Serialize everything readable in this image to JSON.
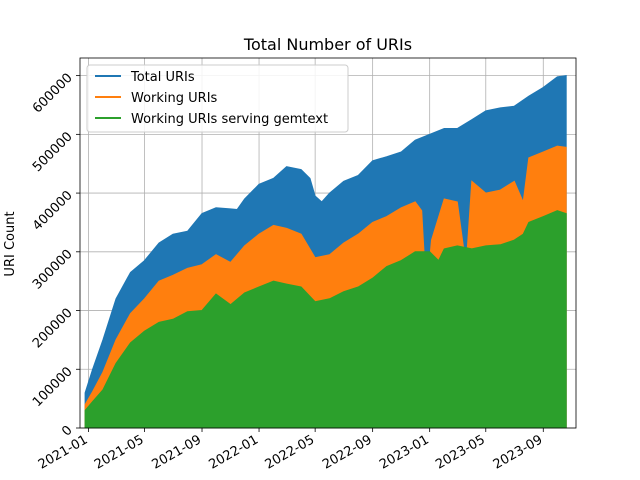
{
  "chart_data": {
    "type": "area",
    "title": "Total Number of URIs",
    "xlabel": "",
    "ylabel": "URI Count",
    "xlim": [
      "2020-12-14",
      "2023-11-10"
    ],
    "ylim": [
      0,
      630000
    ],
    "x_ticks": [
      "2021-01",
      "2021-05",
      "2021-09",
      "2022-01",
      "2022-05",
      "2022-09",
      "2023-01",
      "2023-05",
      "2023-09"
    ],
    "y_ticks": [
      0,
      100000,
      200000,
      300000,
      400000,
      500000,
      600000
    ],
    "grid": true,
    "legend_position": "top-left",
    "series": [
      {
        "name": "Total URIs",
        "color": "#1f77b4",
        "points": [
          [
            "2020-12-25",
            60000
          ],
          [
            "2021-01-10",
            100000
          ],
          [
            "2021-02-01",
            150000
          ],
          [
            "2021-03-01",
            220000
          ],
          [
            "2021-04-01",
            265000
          ],
          [
            "2021-05-01",
            285000
          ],
          [
            "2021-06-01",
            315000
          ],
          [
            "2021-07-01",
            330000
          ],
          [
            "2021-08-01",
            335000
          ],
          [
            "2021-09-01",
            365000
          ],
          [
            "2021-10-01",
            375000
          ],
          [
            "2021-11-01",
            373000
          ],
          [
            "2021-11-15",
            372000
          ],
          [
            "2021-12-01",
            390000
          ],
          [
            "2022-01-01",
            415000
          ],
          [
            "2022-02-01",
            425000
          ],
          [
            "2022-03-01",
            445000
          ],
          [
            "2022-04-01",
            440000
          ],
          [
            "2022-04-20",
            425000
          ],
          [
            "2022-05-01",
            395000
          ],
          [
            "2022-05-15",
            385000
          ],
          [
            "2022-06-01",
            400000
          ],
          [
            "2022-07-01",
            420000
          ],
          [
            "2022-08-01",
            430000
          ],
          [
            "2022-09-01",
            455000
          ],
          [
            "2022-10-01",
            462000
          ],
          [
            "2022-11-01",
            470000
          ],
          [
            "2022-12-01",
            490000
          ],
          [
            "2023-01-01",
            500000
          ],
          [
            "2023-02-01",
            510000
          ],
          [
            "2023-03-01",
            510000
          ],
          [
            "2023-04-01",
            525000
          ],
          [
            "2023-05-01",
            540000
          ],
          [
            "2023-06-01",
            545000
          ],
          [
            "2023-07-01",
            548000
          ],
          [
            "2023-08-01",
            565000
          ],
          [
            "2023-09-01",
            580000
          ],
          [
            "2023-10-01",
            598000
          ],
          [
            "2023-10-20",
            600000
          ]
        ]
      },
      {
        "name": "Working URIs",
        "color": "#ff7f0e",
        "points": [
          [
            "2020-12-25",
            40000
          ],
          [
            "2021-01-10",
            62000
          ],
          [
            "2021-02-01",
            95000
          ],
          [
            "2021-03-01",
            150000
          ],
          [
            "2021-04-01",
            195000
          ],
          [
            "2021-05-01",
            220000
          ],
          [
            "2021-06-01",
            250000
          ],
          [
            "2021-07-01",
            260000
          ],
          [
            "2021-08-01",
            272000
          ],
          [
            "2021-09-01",
            278000
          ],
          [
            "2021-10-01",
            295000
          ],
          [
            "2021-11-01",
            282000
          ],
          [
            "2021-12-01",
            310000
          ],
          [
            "2022-01-01",
            330000
          ],
          [
            "2022-02-01",
            345000
          ],
          [
            "2022-03-01",
            340000
          ],
          [
            "2022-04-01",
            330000
          ],
          [
            "2022-05-01",
            290000
          ],
          [
            "2022-06-01",
            295000
          ],
          [
            "2022-07-01",
            315000
          ],
          [
            "2022-08-01",
            330000
          ],
          [
            "2022-09-01",
            350000
          ],
          [
            "2022-10-01",
            360000
          ],
          [
            "2022-11-01",
            375000
          ],
          [
            "2022-12-01",
            385000
          ],
          [
            "2022-12-15",
            370000
          ],
          [
            "2022-12-25",
            225000
          ],
          [
            "2023-01-05",
            320000
          ],
          [
            "2023-02-01",
            390000
          ],
          [
            "2023-03-01",
            385000
          ],
          [
            "2023-03-20",
            275000
          ],
          [
            "2023-04-01",
            420000
          ],
          [
            "2023-05-01",
            400000
          ],
          [
            "2023-06-01",
            405000
          ],
          [
            "2023-07-01",
            420000
          ],
          [
            "2023-07-20",
            385000
          ],
          [
            "2023-08-01",
            460000
          ],
          [
            "2023-09-01",
            470000
          ],
          [
            "2023-10-01",
            480000
          ],
          [
            "2023-10-20",
            478000
          ]
        ]
      },
      {
        "name": "Working URIs serving gemtext",
        "color": "#2ca02c",
        "points": [
          [
            "2020-12-25",
            30000
          ],
          [
            "2021-01-10",
            45000
          ],
          [
            "2021-02-01",
            65000
          ],
          [
            "2021-03-01",
            110000
          ],
          [
            "2021-04-01",
            145000
          ],
          [
            "2021-05-01",
            165000
          ],
          [
            "2021-06-01",
            180000
          ],
          [
            "2021-07-01",
            185000
          ],
          [
            "2021-08-01",
            198000
          ],
          [
            "2021-09-01",
            200000
          ],
          [
            "2021-10-01",
            228000
          ],
          [
            "2021-11-01",
            210000
          ],
          [
            "2021-12-01",
            230000
          ],
          [
            "2022-01-01",
            240000
          ],
          [
            "2022-02-01",
            250000
          ],
          [
            "2022-03-01",
            245000
          ],
          [
            "2022-04-01",
            240000
          ],
          [
            "2022-05-01",
            215000
          ],
          [
            "2022-06-01",
            220000
          ],
          [
            "2022-07-01",
            232000
          ],
          [
            "2022-08-01",
            240000
          ],
          [
            "2022-09-01",
            255000
          ],
          [
            "2022-10-01",
            275000
          ],
          [
            "2022-11-01",
            285000
          ],
          [
            "2022-12-01",
            300000
          ],
          [
            "2023-01-01",
            300000
          ],
          [
            "2023-01-20",
            285000
          ],
          [
            "2023-02-01",
            305000
          ],
          [
            "2023-03-01",
            310000
          ],
          [
            "2023-04-01",
            305000
          ],
          [
            "2023-05-01",
            310000
          ],
          [
            "2023-06-01",
            312000
          ],
          [
            "2023-07-01",
            320000
          ],
          [
            "2023-07-20",
            330000
          ],
          [
            "2023-08-01",
            350000
          ],
          [
            "2023-09-01",
            360000
          ],
          [
            "2023-10-01",
            370000
          ],
          [
            "2023-10-20",
            365000
          ]
        ]
      }
    ]
  }
}
